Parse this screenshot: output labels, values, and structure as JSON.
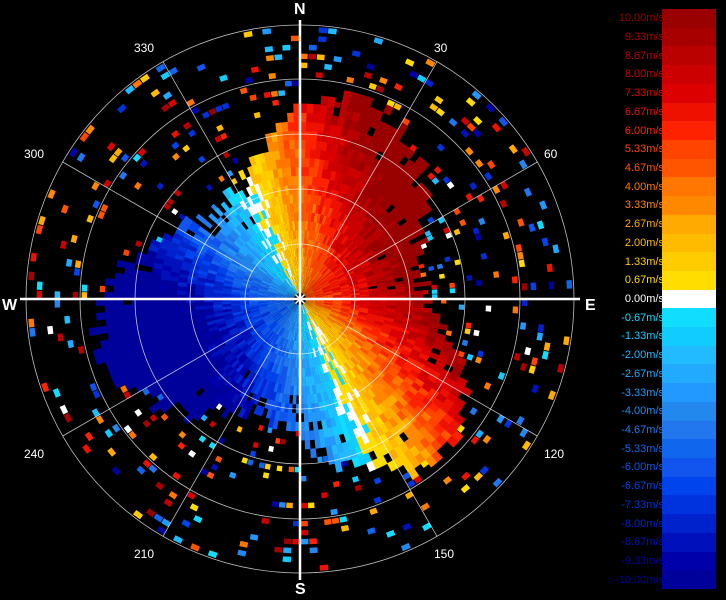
{
  "compass": {
    "north": "N",
    "east": "E",
    "south": "S",
    "west": "W"
  },
  "azimuth_labels": [
    "30",
    "60",
    "120",
    "150",
    "210",
    "240",
    "300",
    "330"
  ],
  "legend": {
    "items": [
      {
        "label": "10.00m/s",
        "color": "#990000"
      },
      {
        "label": "9.33m/s",
        "color": "#a80000"
      },
      {
        "label": "8.67m/s",
        "color": "#bb0000"
      },
      {
        "label": "8.00m/s",
        "color": "#cc0000"
      },
      {
        "label": "7.33m/s",
        "color": "#dd0000"
      },
      {
        "label": "6.67m/s",
        "color": "#ee1100"
      },
      {
        "label": "6.00m/s",
        "color": "#ff2200"
      },
      {
        "label": "5.33m/s",
        "color": "#ff4400"
      },
      {
        "label": "4.67m/s",
        "color": "#ff5500"
      },
      {
        "label": "4.00m/s",
        "color": "#ff7700"
      },
      {
        "label": "3.33m/s",
        "color": "#ff8800"
      },
      {
        "label": "2.67m/s",
        "color": "#ffaa00"
      },
      {
        "label": "2.00m/s",
        "color": "#ffbb00"
      },
      {
        "label": "1.33m/s",
        "color": "#ffcc00"
      },
      {
        "label": "0.67m/s",
        "color": "#ffdd00"
      },
      {
        "label": "0.00m/s",
        "color": "#ffffff"
      },
      {
        "label": "-0.67m/s",
        "color": "#11ddff"
      },
      {
        "label": "-1.33m/s",
        "color": "#11ccff"
      },
      {
        "label": "-2.00m/s",
        "color": "#22bbff"
      },
      {
        "label": "-2.67m/s",
        "color": "#22aaff"
      },
      {
        "label": "-3.33m/s",
        "color": "#2299ff"
      },
      {
        "label": "-4.00m/s",
        "color": "#2288ee"
      },
      {
        "label": "-4.67m/s",
        "color": "#2277ee"
      },
      {
        "label": "-5.33m/s",
        "color": "#1166ee"
      },
      {
        "label": "-6.00m/s",
        "color": "#1155ee"
      },
      {
        "label": "-6.67m/s",
        "color": "#0044ee"
      },
      {
        "label": "-7.33m/s",
        "color": "#0033dd"
      },
      {
        "label": "-8.00m/s",
        "color": "#0022cc"
      },
      {
        "label": "-8.67m/s",
        "color": "#0011bb"
      },
      {
        "label": "-9.33m/s",
        "color": "#0000aa"
      },
      {
        "label": "-10.00m/s",
        "color": "#00009a"
      }
    ]
  }
}
